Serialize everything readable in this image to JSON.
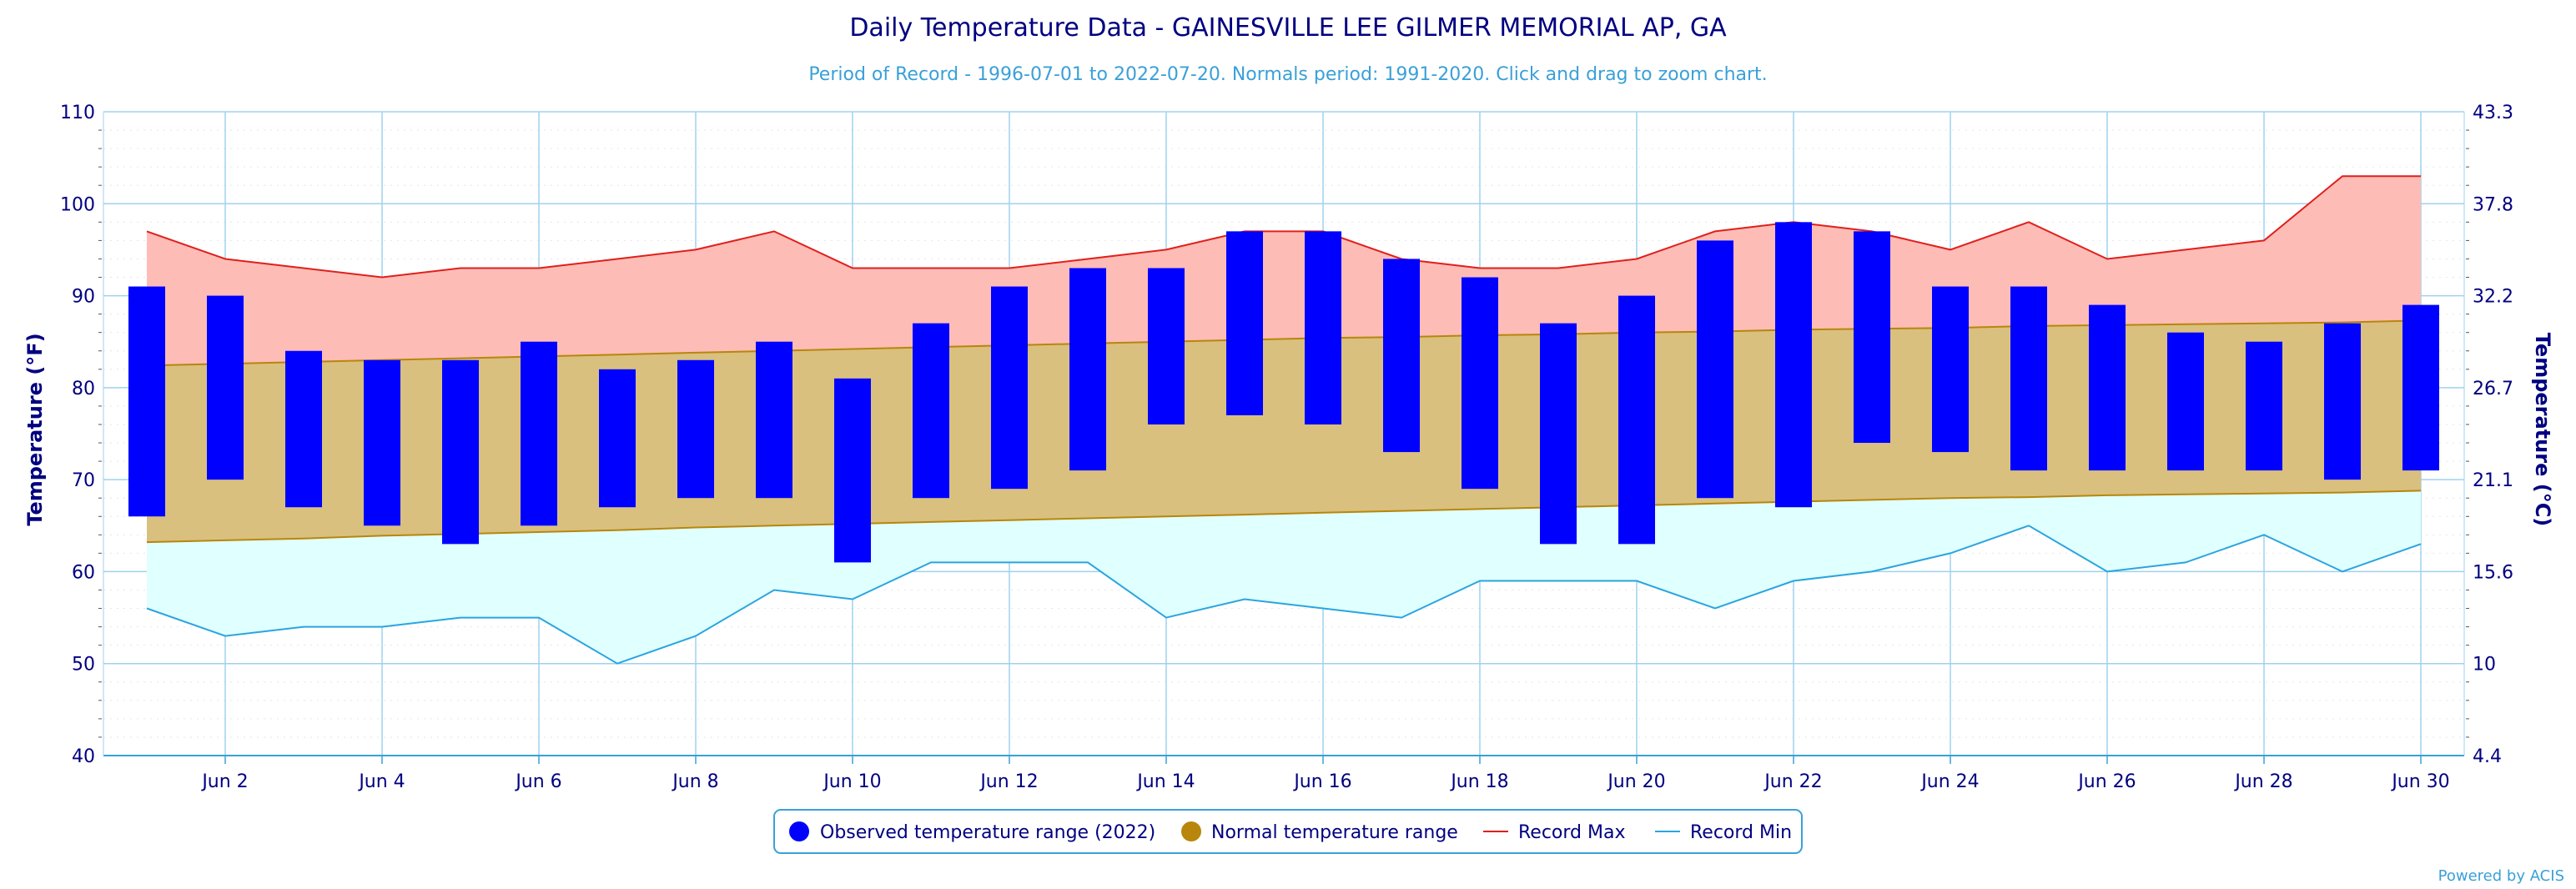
{
  "chart_data": {
    "type": "bar",
    "title": "Daily Temperature Data - GAINESVILLE LEE GILMER MEMORIAL AP, GA",
    "subtitle": "Period of Record - 1996-07-01 to 2022-07-20. Normals period: 1991-2020. Click and drag to zoom chart.",
    "ylabel": "Temperature (°F)",
    "ylabel_right": "Temperature (°C)",
    "ylim": [
      40,
      110
    ],
    "yticks": [
      40,
      50,
      60,
      70,
      80,
      90,
      100,
      110
    ],
    "yticks_right": [
      "4.4",
      "10",
      "15.6",
      "21.1",
      "26.7",
      "32.2",
      "37.8",
      "43.3"
    ],
    "x_days": [
      1,
      30
    ],
    "xtick_labels": [
      {
        "day": 2,
        "label": "Jun 2"
      },
      {
        "day": 4,
        "label": "Jun 4"
      },
      {
        "day": 6,
        "label": "Jun 6"
      },
      {
        "day": 8,
        "label": "Jun 8"
      },
      {
        "day": 10,
        "label": "Jun 10"
      },
      {
        "day": 12,
        "label": "Jun 12"
      },
      {
        "day": 14,
        "label": "Jun 14"
      },
      {
        "day": 16,
        "label": "Jun 16"
      },
      {
        "day": 18,
        "label": "Jun 18"
      },
      {
        "day": 20,
        "label": "Jun 20"
      },
      {
        "day": 22,
        "label": "Jun 22"
      },
      {
        "day": 24,
        "label": "Jun 24"
      },
      {
        "day": 26,
        "label": "Jun 26"
      },
      {
        "day": 28,
        "label": "Jun 28"
      },
      {
        "day": 30,
        "label": "Jun 30"
      }
    ],
    "days": [
      1,
      2,
      3,
      4,
      5,
      6,
      7,
      8,
      9,
      10,
      11,
      12,
      13,
      14,
      15,
      16,
      17,
      18,
      19,
      20,
      21,
      22,
      23,
      24,
      25,
      26,
      27,
      28,
      29,
      30
    ],
    "series": [
      {
        "name": "Observed temperature range (2022)",
        "color": "#0000ff",
        "low": [
          66,
          70,
          67,
          65,
          63,
          65,
          67,
          68,
          68,
          61,
          68,
          69,
          71,
          76,
          77,
          76,
          73,
          69,
          63,
          63,
          68,
          67,
          74,
          73,
          71,
          71,
          71,
          71,
          70,
          71
        ],
        "high": [
          91,
          90,
          84,
          83,
          83,
          85,
          82,
          83,
          85,
          81,
          87,
          91,
          93,
          93,
          97,
          97,
          94,
          92,
          87,
          90,
          96,
          98,
          97,
          91,
          91,
          89,
          86,
          85,
          87,
          89
        ]
      },
      {
        "name": "Normal temperature range",
        "color": "#b8860b",
        "fill": "#d9c07f",
        "low": [
          63.2,
          63.4,
          63.6,
          63.9,
          64.1,
          64.3,
          64.5,
          64.8,
          65.0,
          65.2,
          65.4,
          65.6,
          65.8,
          66.0,
          66.2,
          66.4,
          66.6,
          66.8,
          67.0,
          67.2,
          67.4,
          67.6,
          67.8,
          68.0,
          68.1,
          68.3,
          68.4,
          68.5,
          68.6,
          68.8
        ],
        "high": [
          82.4,
          82.6,
          82.8,
          83.0,
          83.2,
          83.4,
          83.6,
          83.8,
          84.0,
          84.2,
          84.4,
          84.6,
          84.8,
          85.0,
          85.2,
          85.4,
          85.5,
          85.7,
          85.8,
          86.0,
          86.1,
          86.3,
          86.4,
          86.5,
          86.7,
          86.8,
          86.9,
          87.0,
          87.1,
          87.3
        ]
      },
      {
        "name": "Record Max",
        "color": "#e0201c",
        "fill": "#fdbcb6",
        "values": [
          97,
          94,
          93,
          92,
          93,
          93,
          94,
          95,
          97,
          93,
          93,
          93,
          94,
          95,
          97,
          97,
          94,
          93,
          93,
          94,
          97,
          98,
          97,
          95,
          98,
          94,
          95,
          96,
          103,
          103
        ]
      },
      {
        "name": "Record Min",
        "color": "#2aa5de",
        "fill": "#e0ffff",
        "values": [
          56,
          53,
          54,
          54,
          55,
          55,
          50,
          53,
          58,
          57,
          61,
          61,
          61,
          55,
          57,
          56,
          55,
          59,
          59,
          59,
          56,
          59,
          60,
          62,
          65,
          60,
          61,
          64,
          60,
          63
        ]
      }
    ],
    "grid": true,
    "legend_position": "bottom-center",
    "credit": "Powered by ACIS"
  }
}
